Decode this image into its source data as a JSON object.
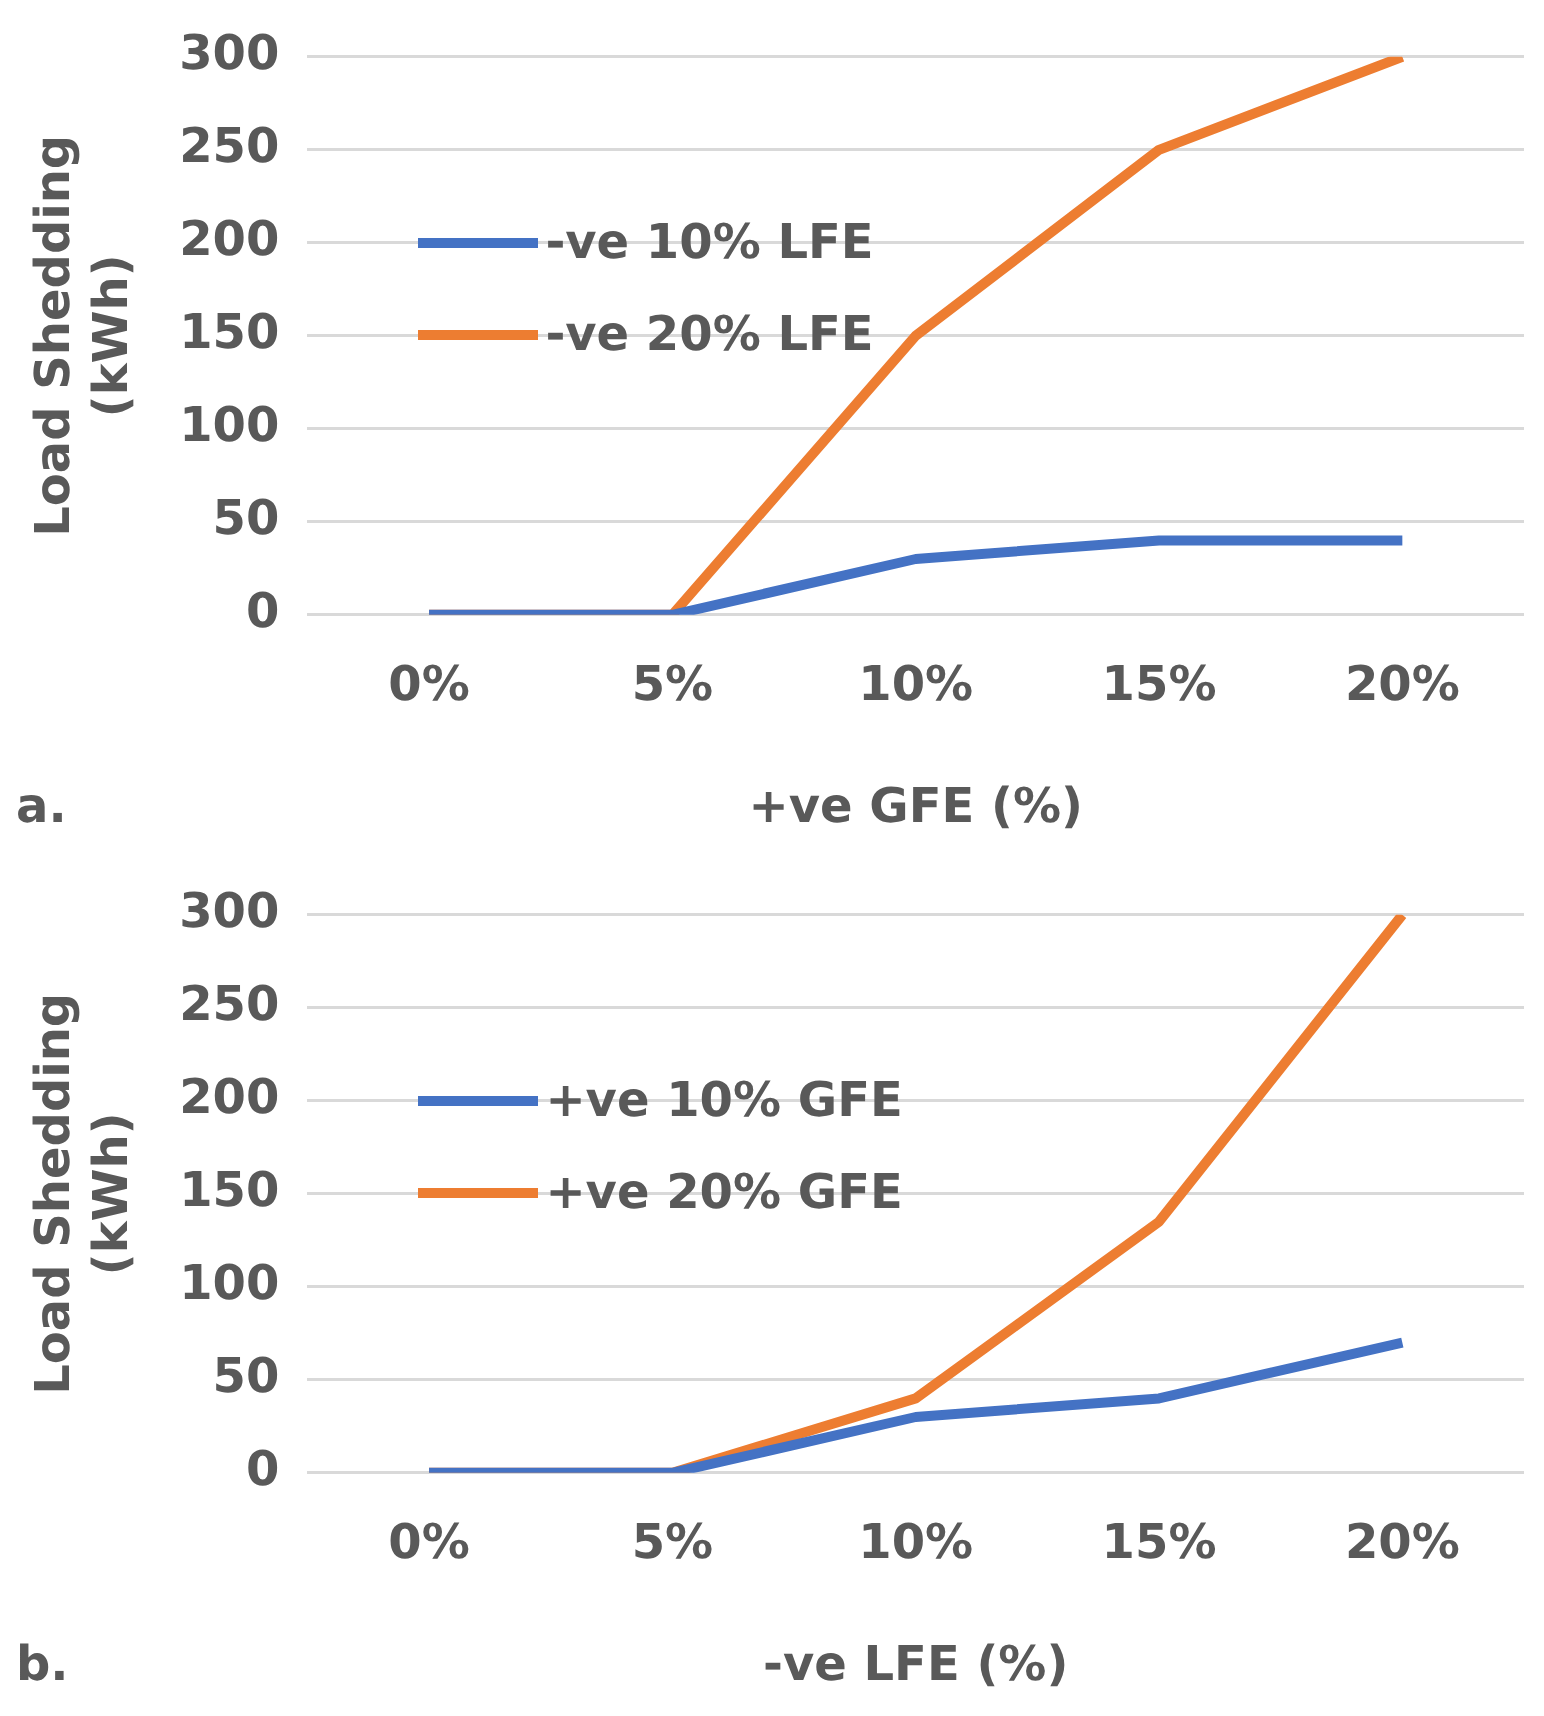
{
  "chart_data": [
    {
      "type": "line",
      "xlabel": "+ve GFE (%)",
      "ylabel": "Load Shedding\n(kWh)",
      "annotations": [
        "a."
      ],
      "categories": [
        "0%",
        "5%",
        "10%",
        "15%",
        "20%"
      ],
      "series": [
        {
          "name": "-ve 10% LFE",
          "color": "#4472c4",
          "values": [
            0,
            0,
            30,
            40,
            40
          ]
        },
        {
          "name": "-ve 20% LFE",
          "color": "#ed7d31",
          "values": [
            0,
            0,
            150,
            250,
            300
          ]
        }
      ],
      "ylim": [
        0,
        300
      ],
      "yticks": [
        0,
        50,
        100,
        150,
        200,
        250,
        300
      ],
      "grid": "y",
      "legend": "top left",
      "marker": "none"
    },
    {
      "type": "line",
      "xlabel": "-ve LFE (%)",
      "ylabel": "Load Shedding\n(kWh)",
      "annotations": [
        "b."
      ],
      "categories": [
        "0%",
        "5%",
        "10%",
        "15%",
        "20%"
      ],
      "series": [
        {
          "name": "+ve 10% GFE",
          "color": "#4472c4",
          "values": [
            0,
            0,
            30,
            40,
            70
          ]
        },
        {
          "name": "+ve 20% GFE",
          "color": "#ed7d31",
          "values": [
            0,
            0,
            40,
            135,
            300
          ]
        }
      ],
      "ylim": [
        0,
        300
      ],
      "yticks": [
        0,
        50,
        100,
        150,
        200,
        250,
        300
      ],
      "grid": "y",
      "legend": "top left",
      "marker": "none"
    }
  ]
}
